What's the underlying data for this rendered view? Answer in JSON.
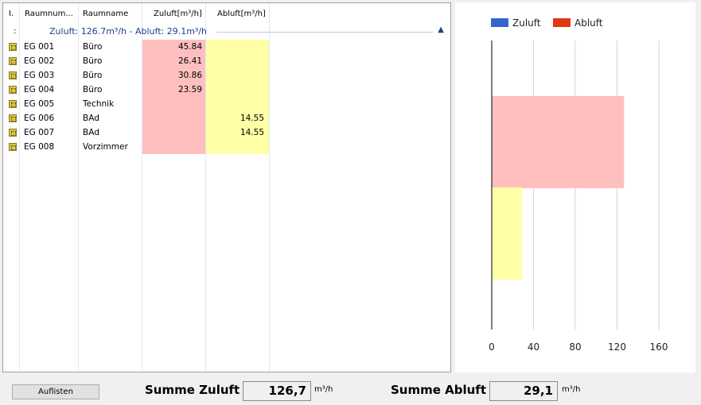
{
  "table": {
    "headers": [
      "I.",
      "Raumnum...",
      "Raumname",
      "Zuluft[m³/h]",
      "Abluft[m³/h]"
    ],
    "group": {
      "marker": ":",
      "text": "Zuluft: 126.7m³/h  -  Abluft: 29.1m³/h",
      "collapse_icon": "chevron-up-icon"
    },
    "rows": [
      {
        "nr": "EG 001",
        "name": "Büro",
        "zuluft": "45.84",
        "abluft": ""
      },
      {
        "nr": "EG 002",
        "name": "Büro",
        "zuluft": "26.41",
        "abluft": ""
      },
      {
        "nr": "EG 003",
        "name": "Büro",
        "zuluft": "30.86",
        "abluft": ""
      },
      {
        "nr": "EG 004",
        "name": "Büro",
        "zuluft": "23.59",
        "abluft": ""
      },
      {
        "nr": "EG 005",
        "name": "Technik",
        "zuluft": "",
        "abluft": ""
      },
      {
        "nr": "EG 006",
        "name": "BAd",
        "zuluft": "",
        "abluft": "14.55"
      },
      {
        "nr": "EG 007",
        "name": "BAd",
        "zuluft": "",
        "abluft": "14.55"
      },
      {
        "nr": "EG 008",
        "name": "Vorzimmer",
        "zuluft": "",
        "abluft": ""
      }
    ]
  },
  "chart_data": {
    "type": "bar",
    "orientation": "horizontal",
    "series": [
      {
        "name": "Zuluft",
        "value": 126.7,
        "legend_color": "#3366cc",
        "bar_color": "#ffbfbf"
      },
      {
        "name": "Abluft",
        "value": 29.1,
        "legend_color": "#dc3912",
        "bar_color": "#ffffa6"
      }
    ],
    "xlim": [
      0,
      160
    ],
    "ticks": [
      "0",
      "40",
      "80",
      "120",
      "160"
    ],
    "grid": true,
    "legend_position": "top"
  },
  "footer": {
    "button_label": "Auflisten",
    "zuluft_label": "Summe Zuluft",
    "zuluft_value": "126,7",
    "abluft_label": "Summe Abluft",
    "abluft_value": "29,1",
    "unit": "m³/h"
  }
}
